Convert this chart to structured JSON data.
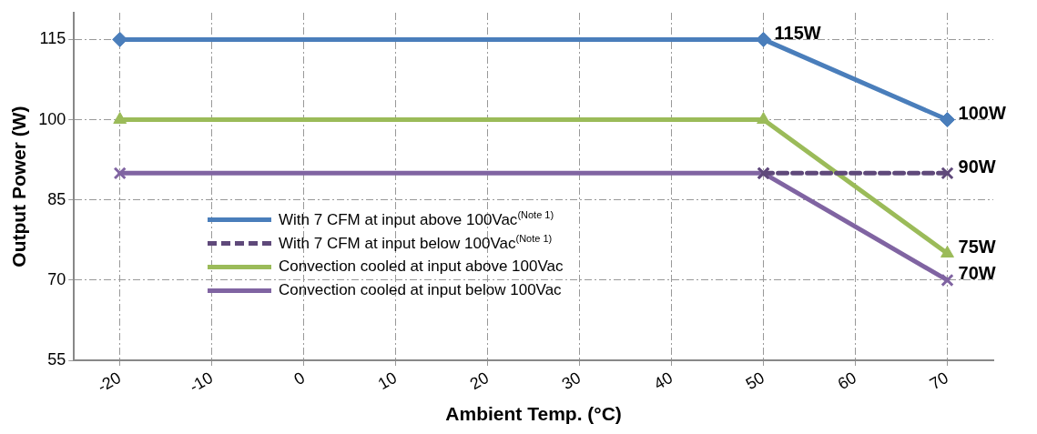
{
  "chart_data": {
    "type": "line",
    "xlabel": "Ambient Temp. (°C)",
    "ylabel": "Output Power (W)",
    "xlim": [
      -25,
      75
    ],
    "xticks": [
      -20,
      -10,
      0,
      10,
      20,
      30,
      40,
      50,
      60,
      70
    ],
    "ylim": [
      55,
      120
    ],
    "yticks": [
      55,
      70,
      85,
      100,
      115
    ],
    "grid": true,
    "legend": "bottom left",
    "series": [
      {
        "name": "With 7 CFM at input above 100Vac$^{(Note 1)}$",
        "color": "#4a7ebb",
        "marker": "diamond",
        "line_style": "solid",
        "x": [
          -20,
          50,
          70
        ],
        "values": [
          115,
          115,
          100
        ],
        "value_labels": [
          null,
          "115W",
          "100W"
        ]
      },
      {
        "name": "With 7 CFM at input below 100Vac$^{(Note 1)}$",
        "color": "#5f497a",
        "marker": "cross",
        "line_style": "dashed",
        "x": [
          50,
          70
        ],
        "values": [
          90,
          90
        ],
        "value_labels": [
          null,
          "90W"
        ]
      },
      {
        "name": "Convection cooled at input above 100Vac",
        "color": "#9bbb59",
        "marker": "triangle",
        "line_style": "solid",
        "x": [
          -20,
          50,
          70
        ],
        "values": [
          100,
          100,
          75
        ],
        "value_labels": [
          null,
          null,
          "75W"
        ]
      },
      {
        "name": "Convection cooled at input below 100Vac",
        "color": "#8064a2",
        "marker": "cross",
        "line_style": "solid",
        "x": [
          -20,
          50,
          70
        ],
        "values": [
          90,
          90,
          70
        ],
        "value_labels": [
          null,
          null,
          "70W"
        ]
      }
    ]
  }
}
